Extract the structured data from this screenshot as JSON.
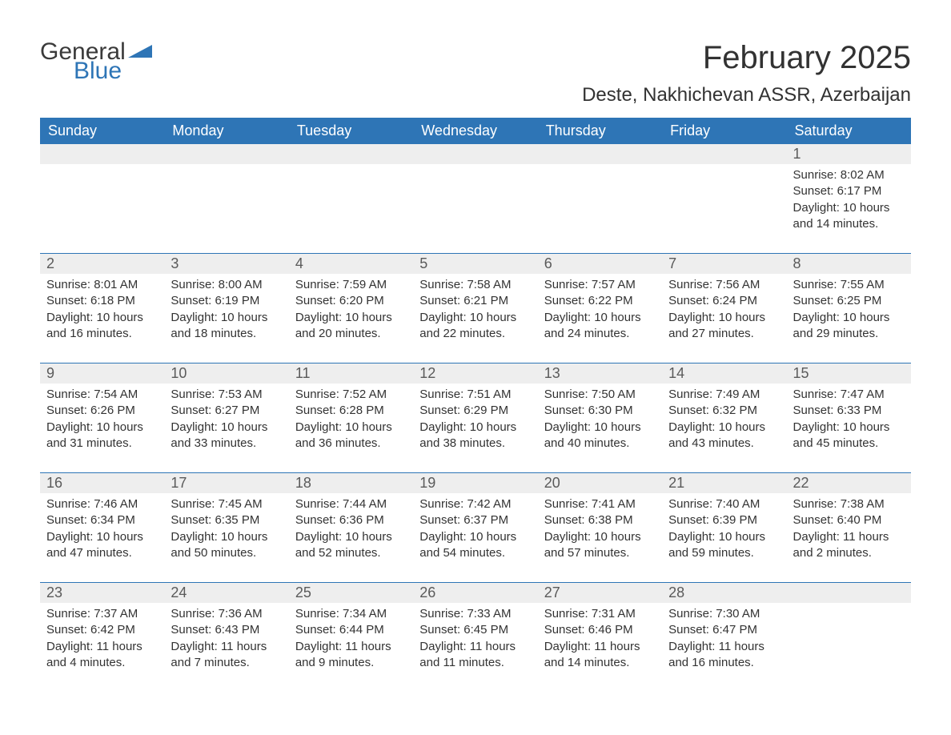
{
  "logo": {
    "text1": "General",
    "text2": "Blue",
    "tri_color": "#2e75b6"
  },
  "title": "February 2025",
  "location": "Deste, Nakhichevan ASSR, Azerbaijan",
  "colors": {
    "header_bg": "#2e75b6",
    "header_text": "#ffffff",
    "daynum_bg": "#eeeeee",
    "daynum_text": "#5a5a5a",
    "body_text": "#333333",
    "rule": "#2e75b6"
  },
  "weekdays": [
    "Sunday",
    "Monday",
    "Tuesday",
    "Wednesday",
    "Thursday",
    "Friday",
    "Saturday"
  ],
  "labels": {
    "sunrise": "Sunrise:",
    "sunset": "Sunset:",
    "daylight": "Daylight:"
  },
  "weeks": [
    [
      null,
      null,
      null,
      null,
      null,
      null,
      {
        "n": "1",
        "sunrise": "8:02 AM",
        "sunset": "6:17 PM",
        "dl1": "10 hours",
        "dl2": "and 14 minutes."
      }
    ],
    [
      {
        "n": "2",
        "sunrise": "8:01 AM",
        "sunset": "6:18 PM",
        "dl1": "10 hours",
        "dl2": "and 16 minutes."
      },
      {
        "n": "3",
        "sunrise": "8:00 AM",
        "sunset": "6:19 PM",
        "dl1": "10 hours",
        "dl2": "and 18 minutes."
      },
      {
        "n": "4",
        "sunrise": "7:59 AM",
        "sunset": "6:20 PM",
        "dl1": "10 hours",
        "dl2": "and 20 minutes."
      },
      {
        "n": "5",
        "sunrise": "7:58 AM",
        "sunset": "6:21 PM",
        "dl1": "10 hours",
        "dl2": "and 22 minutes."
      },
      {
        "n": "6",
        "sunrise": "7:57 AM",
        "sunset": "6:22 PM",
        "dl1": "10 hours",
        "dl2": "and 24 minutes."
      },
      {
        "n": "7",
        "sunrise": "7:56 AM",
        "sunset": "6:24 PM",
        "dl1": "10 hours",
        "dl2": "and 27 minutes."
      },
      {
        "n": "8",
        "sunrise": "7:55 AM",
        "sunset": "6:25 PM",
        "dl1": "10 hours",
        "dl2": "and 29 minutes."
      }
    ],
    [
      {
        "n": "9",
        "sunrise": "7:54 AM",
        "sunset": "6:26 PM",
        "dl1": "10 hours",
        "dl2": "and 31 minutes."
      },
      {
        "n": "10",
        "sunrise": "7:53 AM",
        "sunset": "6:27 PM",
        "dl1": "10 hours",
        "dl2": "and 33 minutes."
      },
      {
        "n": "11",
        "sunrise": "7:52 AM",
        "sunset": "6:28 PM",
        "dl1": "10 hours",
        "dl2": "and 36 minutes."
      },
      {
        "n": "12",
        "sunrise": "7:51 AM",
        "sunset": "6:29 PM",
        "dl1": "10 hours",
        "dl2": "and 38 minutes."
      },
      {
        "n": "13",
        "sunrise": "7:50 AM",
        "sunset": "6:30 PM",
        "dl1": "10 hours",
        "dl2": "and 40 minutes."
      },
      {
        "n": "14",
        "sunrise": "7:49 AM",
        "sunset": "6:32 PM",
        "dl1": "10 hours",
        "dl2": "and 43 minutes."
      },
      {
        "n": "15",
        "sunrise": "7:47 AM",
        "sunset": "6:33 PM",
        "dl1": "10 hours",
        "dl2": "and 45 minutes."
      }
    ],
    [
      {
        "n": "16",
        "sunrise": "7:46 AM",
        "sunset": "6:34 PM",
        "dl1": "10 hours",
        "dl2": "and 47 minutes."
      },
      {
        "n": "17",
        "sunrise": "7:45 AM",
        "sunset": "6:35 PM",
        "dl1": "10 hours",
        "dl2": "and 50 minutes."
      },
      {
        "n": "18",
        "sunrise": "7:44 AM",
        "sunset": "6:36 PM",
        "dl1": "10 hours",
        "dl2": "and 52 minutes."
      },
      {
        "n": "19",
        "sunrise": "7:42 AM",
        "sunset": "6:37 PM",
        "dl1": "10 hours",
        "dl2": "and 54 minutes."
      },
      {
        "n": "20",
        "sunrise": "7:41 AM",
        "sunset": "6:38 PM",
        "dl1": "10 hours",
        "dl2": "and 57 minutes."
      },
      {
        "n": "21",
        "sunrise": "7:40 AM",
        "sunset": "6:39 PM",
        "dl1": "10 hours",
        "dl2": "and 59 minutes."
      },
      {
        "n": "22",
        "sunrise": "7:38 AM",
        "sunset": "6:40 PM",
        "dl1": "11 hours",
        "dl2": "and 2 minutes."
      }
    ],
    [
      {
        "n": "23",
        "sunrise": "7:37 AM",
        "sunset": "6:42 PM",
        "dl1": "11 hours",
        "dl2": "and 4 minutes."
      },
      {
        "n": "24",
        "sunrise": "7:36 AM",
        "sunset": "6:43 PM",
        "dl1": "11 hours",
        "dl2": "and 7 minutes."
      },
      {
        "n": "25",
        "sunrise": "7:34 AM",
        "sunset": "6:44 PM",
        "dl1": "11 hours",
        "dl2": "and 9 minutes."
      },
      {
        "n": "26",
        "sunrise": "7:33 AM",
        "sunset": "6:45 PM",
        "dl1": "11 hours",
        "dl2": "and 11 minutes."
      },
      {
        "n": "27",
        "sunrise": "7:31 AM",
        "sunset": "6:46 PM",
        "dl1": "11 hours",
        "dl2": "and 14 minutes."
      },
      {
        "n": "28",
        "sunrise": "7:30 AM",
        "sunset": "6:47 PM",
        "dl1": "11 hours",
        "dl2": "and 16 minutes."
      },
      null
    ]
  ]
}
